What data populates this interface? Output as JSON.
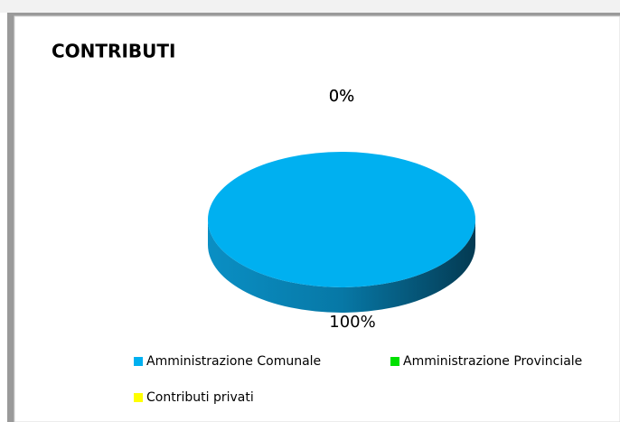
{
  "chart_data": {
    "type": "pie",
    "title": "CONTRIBUTI",
    "categories": [
      "Amministrazione Comunale",
      "Amministrazione Provinciale",
      "Contributi privati"
    ],
    "values": [
      100,
      0,
      0
    ],
    "value_labels": [
      "100%",
      "0%",
      "0%"
    ],
    "colors": [
      "#00b0f0",
      "#00e000",
      "#ffff00"
    ],
    "legend": "bottom"
  }
}
